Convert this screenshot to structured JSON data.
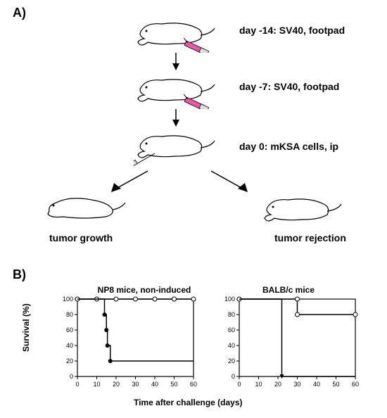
{
  "panelA": {
    "label": "A)",
    "steps": [
      {
        "text": "day -14: SV40, footpad"
      },
      {
        "text": "day -7: SV40, footpad"
      },
      {
        "text": "day 0: mKSA cells, ip"
      }
    ],
    "outcomes": {
      "left": "tumor growth",
      "right": "tumor rejection"
    },
    "mouse_outline": "#000000",
    "syringe_fill": "#e85aa8",
    "syringe_body": "#cccccc"
  },
  "panelB": {
    "label": "B)",
    "xlabel": "Time after challenge (days)",
    "ylabel": "Survival (%)",
    "charts": [
      {
        "title": "NP8 mice, non-induced",
        "xlim": [
          0,
          60
        ],
        "ylim": [
          0,
          100
        ],
        "xtick_step": 10,
        "ytick_step": 20,
        "series": [
          {
            "marker": "circle-open",
            "color": "#000000",
            "points": [
              [
                0,
                100
              ],
              [
                10,
                100
              ],
              [
                20,
                100
              ],
              [
                30,
                100
              ],
              [
                40,
                100
              ],
              [
                50,
                100
              ],
              [
                60,
                100
              ]
            ]
          },
          {
            "marker": "circle-filled",
            "color": "#000000",
            "points": [
              [
                0,
                100
              ],
              [
                14,
                100
              ],
              [
                14,
                80
              ],
              [
                15,
                80
              ],
              [
                15,
                60
              ],
              [
                15.5,
                60
              ],
              [
                15.5,
                40
              ],
              [
                17,
                40
              ],
              [
                17,
                20
              ],
              [
                60,
                20
              ]
            ]
          }
        ],
        "line_width": 1.5,
        "background": "#ffffff",
        "axis_color": "#000000"
      },
      {
        "title": "BALB/c mice",
        "xlim": [
          0,
          60
        ],
        "ylim": [
          0,
          100
        ],
        "xtick_step": 10,
        "ytick_step": 20,
        "series": [
          {
            "marker": "circle-open",
            "color": "#000000",
            "points": [
              [
                0,
                100
              ],
              [
                30,
                100
              ],
              [
                30,
                80
              ],
              [
                60,
                80
              ]
            ]
          },
          {
            "marker": "triangle-filled",
            "color": "#000000",
            "points": [
              [
                0,
                100
              ],
              [
                22,
                100
              ],
              [
                22,
                0
              ],
              [
                60,
                0
              ]
            ]
          }
        ],
        "line_width": 1.5,
        "background": "#ffffff",
        "axis_color": "#000000"
      }
    ]
  }
}
